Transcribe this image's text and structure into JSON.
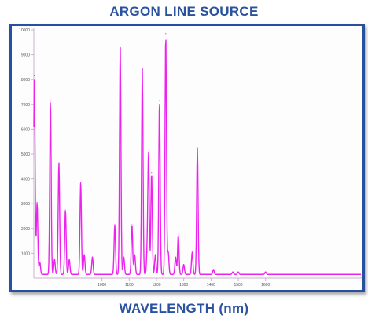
{
  "chart_data": {
    "type": "line",
    "title": "ARGON LINE SOURCE",
    "xlabel": "WAVELENGTH (nm)",
    "ylabel": "",
    "xlim": [
      750,
      1950
    ],
    "ylim": [
      0,
      10000
    ],
    "grid": false,
    "x_ticks": [
      1000,
      1100,
      1200,
      1300,
      1400,
      1500,
      1600
    ],
    "x_tick_labels": [
      "1000",
      "1100",
      "1200",
      "1300",
      "1400",
      "1500",
      "1600"
    ],
    "y_ticks": [
      1000,
      2000,
      3000,
      4000,
      5000,
      6000,
      7000,
      8000,
      9000,
      10000
    ],
    "y_tick_labels": [
      "1000",
      "2000",
      "3000",
      "4000",
      "5000",
      "6000",
      "7000",
      "8000",
      "9000",
      "10000"
    ],
    "series": [
      {
        "color": "#ee22ee",
        "peaks": [
          {
            "x": 752,
            "y": 8000
          },
          {
            "x": 762,
            "y": 2900
          },
          {
            "x": 772,
            "y": 500
          },
          {
            "x": 811,
            "y": 7000
          },
          {
            "x": 826,
            "y": 600
          },
          {
            "x": 842,
            "y": 4500
          },
          {
            "x": 866,
            "y": 2600
          },
          {
            "x": 880,
            "y": 600
          },
          {
            "x": 922,
            "y": 3700
          },
          {
            "x": 935,
            "y": 800
          },
          {
            "x": 965,
            "y": 700
          },
          {
            "x": 1047,
            "y": 2000
          },
          {
            "x": 1067,
            "y": 9200
          },
          {
            "x": 1080,
            "y": 700
          },
          {
            "x": 1110,
            "y": 2000
          },
          {
            "x": 1120,
            "y": 800
          },
          {
            "x": 1148,
            "y": 8300
          },
          {
            "x": 1166,
            "y": 900
          },
          {
            "x": 1171,
            "y": 4800
          },
          {
            "x": 1182,
            "y": 4100
          },
          {
            "x": 1196,
            "y": 800
          },
          {
            "x": 1211,
            "y": 7000
          },
          {
            "x": 1234,
            "y": 9700
          },
          {
            "x": 1243,
            "y": 900
          },
          {
            "x": 1270,
            "y": 700
          },
          {
            "x": 1280,
            "y": 1600
          },
          {
            "x": 1300,
            "y": 400
          },
          {
            "x": 1331,
            "y": 900
          },
          {
            "x": 1350,
            "y": 5100
          },
          {
            "x": 1409,
            "y": 200
          },
          {
            "x": 1480,
            "y": 100
          },
          {
            "x": 1500,
            "y": 100
          },
          {
            "x": 1600,
            "y": 100
          }
        ]
      }
    ]
  }
}
